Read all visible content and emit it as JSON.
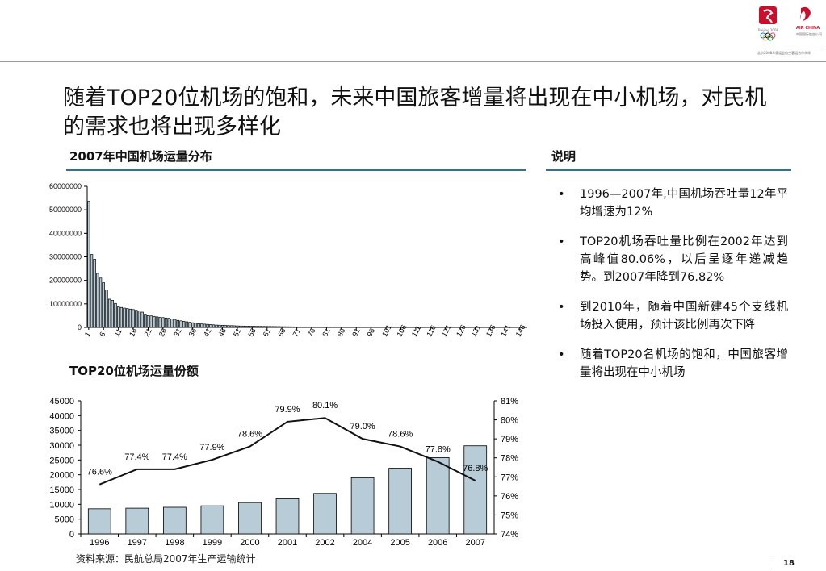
{
  "header": {
    "logo_left_caption": "Beijing 2008",
    "logo_right_caption": "AIR CHINA",
    "logo_right_sub": "中国国际航空公司",
    "logo_small_line": "北京2008年奥运会航空客运合作伙伴"
  },
  "slide_title": "随着TOP20位机场的饱和，未来中国旅客增量将出现在中小机场，对民机的需求也将出现多样化",
  "left": {
    "chart1_title": "2007年中国机场运量分布",
    "chart2_title": "TOP20位机场运量份额"
  },
  "right": {
    "title": "说明",
    "bullets": [
      "1996—2007年,中国机场吞吐量12年平均增速为12%",
      "TOP20机场吞吐量比例在2002年达到高峰值80.06%，以后呈逐年递减趋势。到2007年降到76.82%",
      "到2010年，随着中国新建45个支线机场投入使用，预计该比例再次下降",
      "随着TOP20名机场的饱和，中国旅客增量将出现在中小机场"
    ]
  },
  "footer": {
    "source": "资料来源：民航总局2007年生产运输统计",
    "page_number": "18"
  },
  "chart_data": [
    {
      "type": "bar",
      "title": "2007年中国机场运量分布",
      "x_tick_labels": [
        "1",
        "6",
        "11",
        "16",
        "21",
        "26",
        "31",
        "36",
        "41",
        "46",
        "51",
        "56",
        "61",
        "66",
        "71",
        "76",
        "81",
        "86",
        "91",
        "96",
        "101",
        "106",
        "111",
        "116",
        "121",
        "126",
        "131",
        "136",
        "141",
        "146"
      ],
      "y_tick_labels": [
        "0",
        "10000000",
        "20000000",
        "30000000",
        "40000000",
        "50000000",
        "60000000"
      ],
      "ylim": [
        0,
        60000000
      ],
      "xlim": [
        1,
        148
      ],
      "bar_color": "#b7ccd7",
      "values": [
        53600000,
        31000000,
        29000000,
        23000000,
        21000000,
        19000000,
        16000000,
        12000000,
        11500000,
        10200000,
        8700000,
        8500000,
        8200000,
        8000000,
        7800000,
        7600000,
        7300000,
        7000000,
        6500000,
        5600000,
        5000000,
        4900000,
        4700000,
        4500000,
        4300000,
        4200000,
        4000000,
        3900000,
        3600000,
        3400000,
        3000000,
        2800000,
        2600000,
        2400000,
        2200000,
        2000000,
        1800000,
        1600000,
        1500000,
        1400000,
        1300000,
        1200000,
        1100000,
        1000000,
        950000,
        900000,
        850000,
        800000,
        750000,
        700000,
        650000,
        600000,
        580000,
        560000,
        540000,
        520000,
        500000,
        480000,
        460000,
        440000,
        420000,
        400000,
        380000,
        360000,
        340000,
        320000,
        300000,
        280000,
        260000,
        240000,
        220000,
        200000,
        190000,
        180000,
        170000,
        160000,
        150000,
        140000,
        130000,
        120000,
        110000,
        100000
      ]
    },
    {
      "type": "bar",
      "title": "TOP20位机场运量份额",
      "categories": [
        "1996",
        "1997",
        "1998",
        "1999",
        "2000",
        "2001",
        "2002",
        "2004",
        "2005",
        "2006",
        "2007"
      ],
      "series": [
        {
          "axis": "left",
          "type": "bar",
          "color": "#b7ccd7",
          "values": [
            8500,
            8700,
            9000,
            9500,
            10600,
            11900,
            13700,
            19000,
            22200,
            25800,
            29800
          ]
        },
        {
          "axis": "right",
          "type": "line",
          "color": "#111111",
          "values": [
            76.6,
            77.4,
            77.4,
            77.9,
            78.6,
            79.9,
            80.1,
            79.0,
            78.6,
            77.8,
            76.8
          ],
          "labels": [
            "76.6%",
            "77.4%",
            "77.4%",
            "77.9%",
            "78.6%",
            "79.9%",
            "80.1%",
            "79.0%",
            "78.6%",
            "77.8%",
            "76.8%"
          ]
        }
      ],
      "y_left_ticks": [
        "0",
        "5000",
        "10000",
        "15000",
        "20000",
        "25000",
        "30000",
        "35000",
        "40000",
        "45000"
      ],
      "y_left_lim": [
        0,
        45000
      ],
      "y_right_ticks": [
        "74%",
        "75%",
        "76%",
        "77%",
        "78%",
        "79%",
        "80%",
        "81%"
      ],
      "y_right_lim": [
        74,
        81
      ]
    }
  ]
}
